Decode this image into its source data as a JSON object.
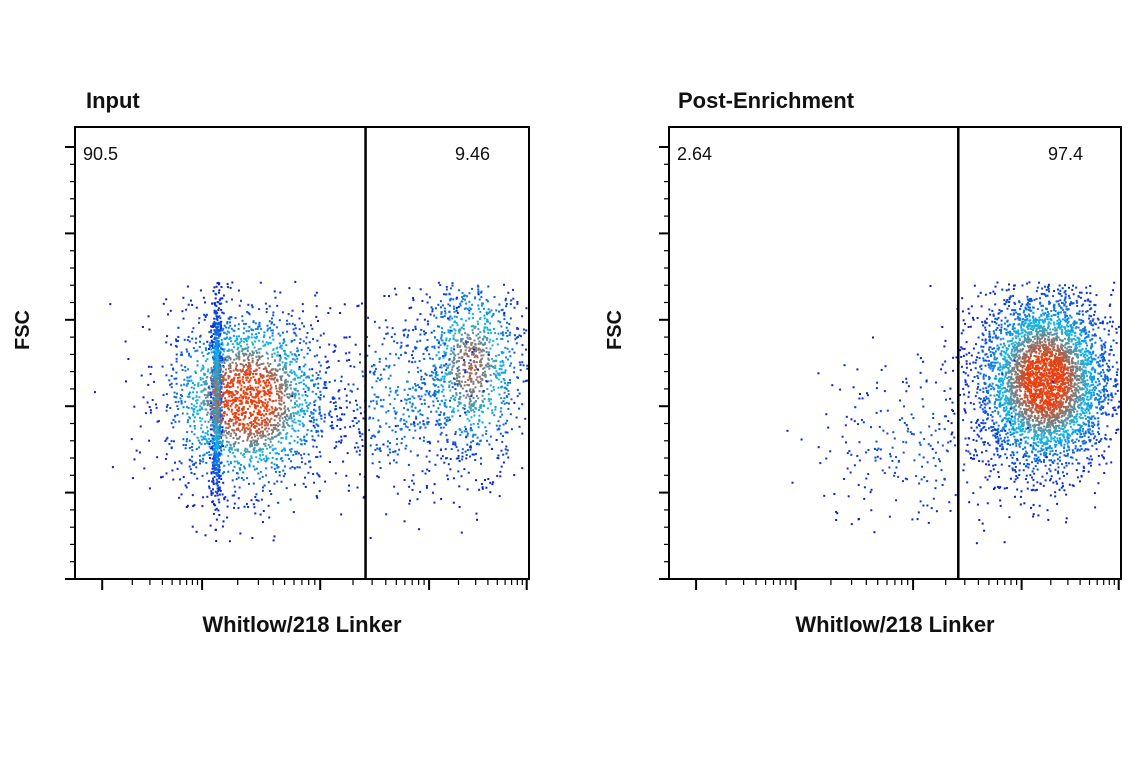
{
  "chart_data": [
    {
      "type": "scatter",
      "title": "Input",
      "xlabel": "Whitlow/218 Linker",
      "ylabel": "FSC",
      "x_scale": "log",
      "gate_labels": [
        "90.5",
        "9.46"
      ],
      "populations": [
        {
          "cx": 0.31,
          "cy": 0.4,
          "sx": 0.006,
          "sy": 0.11,
          "n": 900
        },
        {
          "cx": 0.38,
          "cy": 0.4,
          "sx": 0.09,
          "sy": 0.1,
          "n": 2300
        },
        {
          "cx": 0.87,
          "cy": 0.47,
          "sx": 0.06,
          "sy": 0.11,
          "n": 1100
        },
        {
          "cx": 0.72,
          "cy": 0.4,
          "sx": 0.09,
          "sy": 0.11,
          "n": 450
        }
      ],
      "gate_x": 0.64
    },
    {
      "type": "scatter",
      "title": "Post-Enrichment",
      "xlabel": "Whitlow/218 Linker",
      "ylabel": "FSC",
      "x_scale": "log",
      "gate_labels": [
        "2.64",
        "97.4"
      ],
      "populations": [
        {
          "cx": 0.83,
          "cy": 0.44,
          "sx": 0.075,
          "sy": 0.1,
          "n": 4200
        },
        {
          "cx": 0.55,
          "cy": 0.3,
          "sx": 0.12,
          "sy": 0.1,
          "n": 260
        }
      ],
      "gate_x": 0.64
    }
  ],
  "colors": {
    "density_low": "#0a14d8",
    "density_mid": "#10b8e8",
    "density_high": "#e84010",
    "axis": "#000000"
  }
}
